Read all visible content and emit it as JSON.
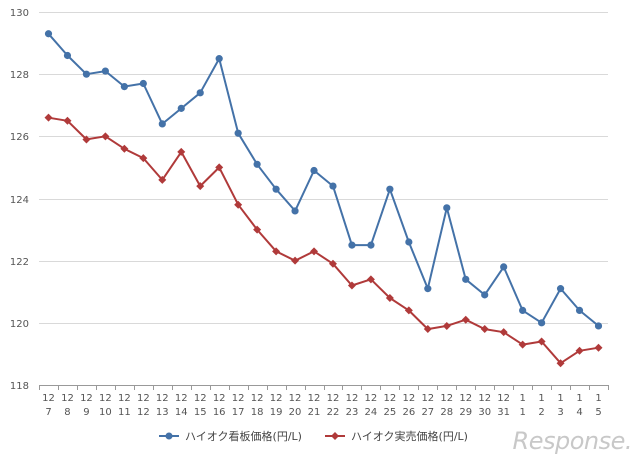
{
  "chart_data": {
    "type": "line",
    "title": "",
    "xlabel": "",
    "ylabel": "",
    "ylim": [
      118,
      130
    ],
    "yticks": [
      118,
      120,
      122,
      124,
      126,
      128,
      130
    ],
    "grid": "horizontal",
    "legend_position": "bottom",
    "categories": [
      [
        "12",
        "7"
      ],
      [
        "12",
        "8"
      ],
      [
        "12",
        "9"
      ],
      [
        "12",
        "10"
      ],
      [
        "12",
        "11"
      ],
      [
        "12",
        "12"
      ],
      [
        "12",
        "13"
      ],
      [
        "12",
        "14"
      ],
      [
        "12",
        "15"
      ],
      [
        "12",
        "16"
      ],
      [
        "12",
        "17"
      ],
      [
        "12",
        "18"
      ],
      [
        "12",
        "19"
      ],
      [
        "12",
        "20"
      ],
      [
        "12",
        "21"
      ],
      [
        "12",
        "22"
      ],
      [
        "12",
        "23"
      ],
      [
        "12",
        "24"
      ],
      [
        "12",
        "25"
      ],
      [
        "12",
        "26"
      ],
      [
        "12",
        "27"
      ],
      [
        "12",
        "28"
      ],
      [
        "12",
        "29"
      ],
      [
        "12",
        "30"
      ],
      [
        "12",
        "31"
      ],
      [
        "1",
        "1"
      ],
      [
        "1",
        "2"
      ],
      [
        "1",
        "3"
      ],
      [
        "1",
        "4"
      ],
      [
        "1",
        "5"
      ]
    ],
    "series": [
      {
        "name": "ハイオク看板価格(円/L)",
        "color": "#4472a8",
        "marker": "circle",
        "values": [
          129.3,
          128.6,
          128.0,
          128.1,
          127.6,
          127.7,
          126.4,
          126.9,
          127.4,
          128.5,
          126.1,
          125.1,
          124.3,
          123.6,
          124.9,
          124.4,
          122.5,
          122.5,
          124.3,
          122.6,
          121.1,
          123.7,
          121.4,
          120.9,
          121.8,
          120.4,
          120.0,
          121.1,
          120.4,
          119.9
        ]
      },
      {
        "name": "ハイオク実売価格(円/L)",
        "color": "#b03a3a",
        "marker": "diamond",
        "values": [
          126.6,
          126.5,
          125.9,
          126.0,
          125.6,
          125.3,
          124.6,
          125.5,
          124.4,
          125.0,
          123.8,
          123.0,
          122.3,
          122.0,
          122.3,
          121.9,
          121.2,
          121.4,
          120.8,
          120.4,
          119.8,
          119.9,
          120.1,
          119.8,
          119.7,
          119.3,
          119.4,
          118.7,
          119.1,
          119.2
        ]
      }
    ]
  },
  "watermark": "Response."
}
